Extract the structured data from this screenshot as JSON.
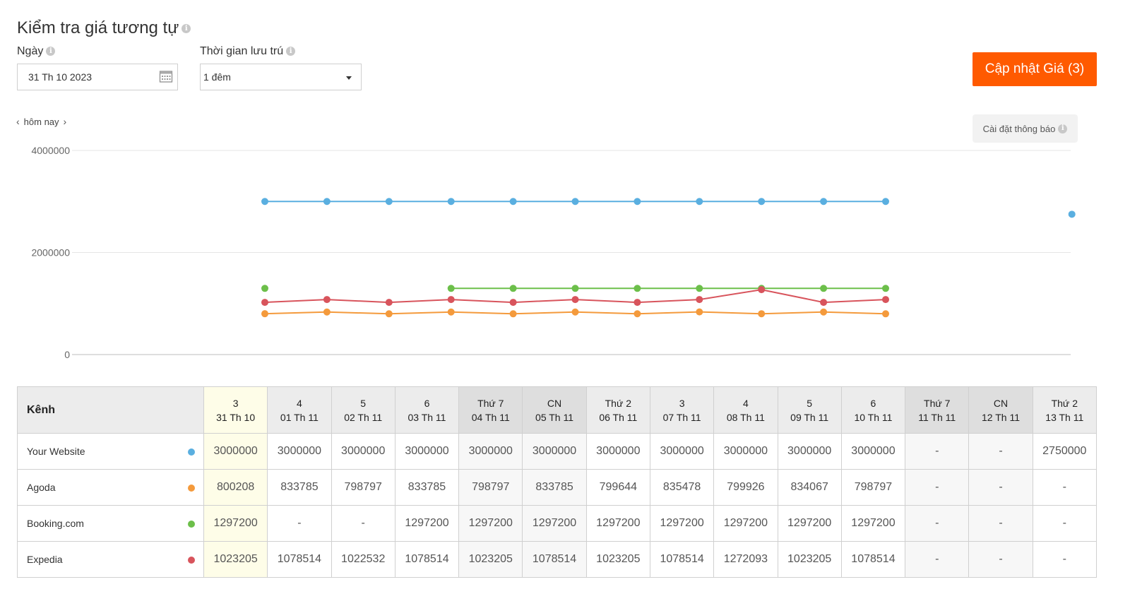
{
  "header": {
    "title": "Kiểm tra giá tương tự"
  },
  "filters": {
    "date_label": "Ngày",
    "date_value": "31 Th 10 2023",
    "stay_label": "Thời gian lưu trú",
    "stay_value": "1 đêm"
  },
  "update_button": "Cập nhật Giá (3)",
  "nav": {
    "today": "hôm nay"
  },
  "notification_button": "Cài đặt thông báo",
  "chart_data": {
    "type": "line",
    "x": [
      "31 Th 10",
      "01 Th 11",
      "02 Th 11",
      "03 Th 11",
      "04 Th 11",
      "05 Th 11",
      "06 Th 11",
      "07 Th 11",
      "08 Th 11",
      "09 Th 11",
      "10 Th 11",
      "11 Th 11",
      "12 Th 11",
      "13 Th 11"
    ],
    "ylim": [
      0,
      4000000
    ],
    "yticks": [
      "0",
      "2000000",
      "4000000"
    ],
    "grid": true,
    "series": [
      {
        "name": "Your Website",
        "color": "#5aafe0",
        "values": [
          3000000,
          3000000,
          3000000,
          3000000,
          3000000,
          3000000,
          3000000,
          3000000,
          3000000,
          3000000,
          3000000,
          null,
          null,
          2750000
        ]
      },
      {
        "name": "Agoda",
        "color": "#f49a3c",
        "values": [
          800208,
          833785,
          798797,
          833785,
          798797,
          833785,
          799644,
          835478,
          799926,
          834067,
          798797,
          null,
          null,
          null
        ]
      },
      {
        "name": "Booking.com",
        "color": "#6cbf4a",
        "values": [
          1297200,
          null,
          null,
          1297200,
          1297200,
          1297200,
          1297200,
          1297200,
          1297200,
          1297200,
          1297200,
          null,
          null,
          null
        ]
      },
      {
        "name": "Expedia",
        "color": "#d8545c",
        "values": [
          1023205,
          1078514,
          1022532,
          1078514,
          1023205,
          1078514,
          1023205,
          1078514,
          1272093,
          1023205,
          1078514,
          null,
          null,
          null
        ]
      }
    ]
  },
  "table": {
    "channel_header": "Kênh",
    "columns": [
      {
        "day": "3",
        "date": "31 Th 10"
      },
      {
        "day": "4",
        "date": "01 Th 11"
      },
      {
        "day": "5",
        "date": "02 Th 11"
      },
      {
        "day": "6",
        "date": "03 Th 11"
      },
      {
        "day": "Thứ 7",
        "date": "04 Th 11"
      },
      {
        "day": "CN",
        "date": "05 Th 11"
      },
      {
        "day": "Thứ 2",
        "date": "06 Th 11"
      },
      {
        "day": "3",
        "date": "07 Th 11"
      },
      {
        "day": "4",
        "date": "08 Th 11"
      },
      {
        "day": "5",
        "date": "09 Th 11"
      },
      {
        "day": "6",
        "date": "10 Th 11"
      },
      {
        "day": "Thứ 7",
        "date": "11 Th 11"
      },
      {
        "day": "CN",
        "date": "12 Th 11"
      },
      {
        "day": "Thứ 2",
        "date": "13 Th 11"
      }
    ],
    "rows": [
      {
        "channel": "Your Website",
        "color": "#5aafe0",
        "cells": [
          "3000000",
          "3000000",
          "3000000",
          "3000000",
          "3000000",
          "3000000",
          "3000000",
          "3000000",
          "3000000",
          "3000000",
          "3000000",
          "-",
          "-",
          "2750000"
        ]
      },
      {
        "channel": "Agoda",
        "color": "#f49a3c",
        "cells": [
          "800208",
          "833785",
          "798797",
          "833785",
          "798797",
          "833785",
          "799644",
          "835478",
          "799926",
          "834067",
          "798797",
          "-",
          "-",
          "-"
        ]
      },
      {
        "channel": "Booking.com",
        "color": "#6cbf4a",
        "cells": [
          "1297200",
          "-",
          "-",
          "1297200",
          "1297200",
          "1297200",
          "1297200",
          "1297200",
          "1297200",
          "1297200",
          "1297200",
          "-",
          "-",
          "-"
        ]
      },
      {
        "channel": "Expedia",
        "color": "#d8545c",
        "cells": [
          "1023205",
          "1078514",
          "1022532",
          "1078514",
          "1023205",
          "1078514",
          "1023205",
          "1078514",
          "1272093",
          "1023205",
          "1078514",
          "-",
          "-",
          "-"
        ]
      }
    ]
  }
}
